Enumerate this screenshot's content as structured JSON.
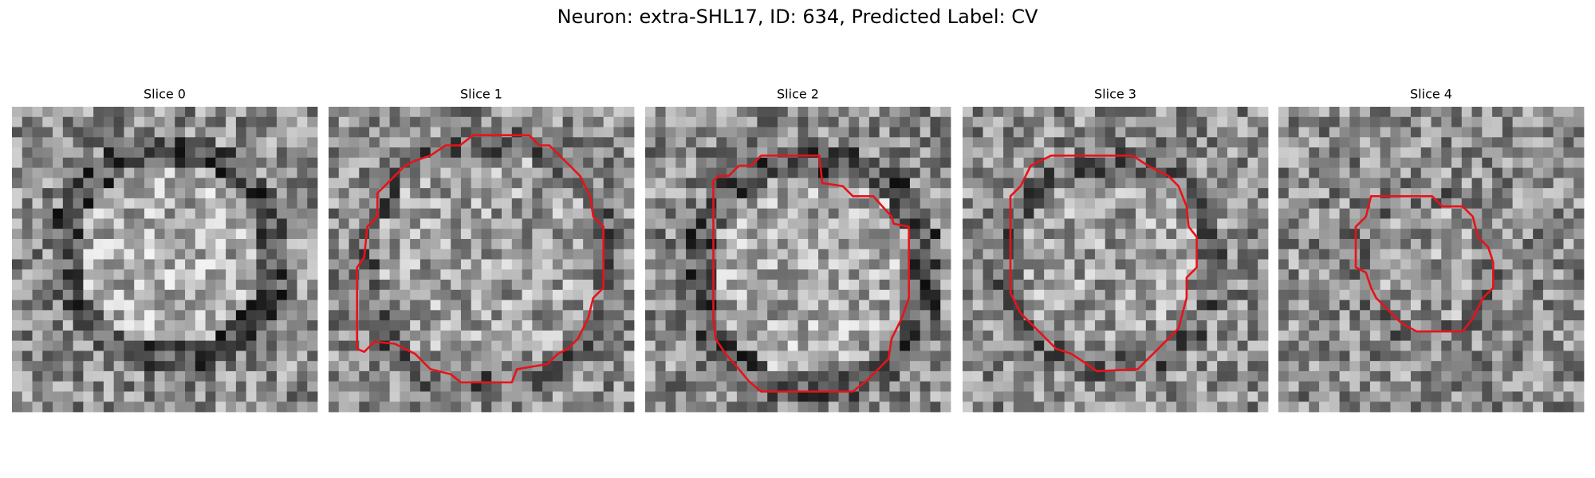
{
  "header": {
    "title": "Neuron: extra-SHL17, ID: 634, Predicted Label: CV"
  },
  "panels": [
    {
      "title": "Slice 0"
    },
    {
      "title": "Slice 1"
    },
    {
      "title": "Slice 2"
    },
    {
      "title": "Slice 3"
    },
    {
      "title": "Slice 4"
    }
  ]
}
